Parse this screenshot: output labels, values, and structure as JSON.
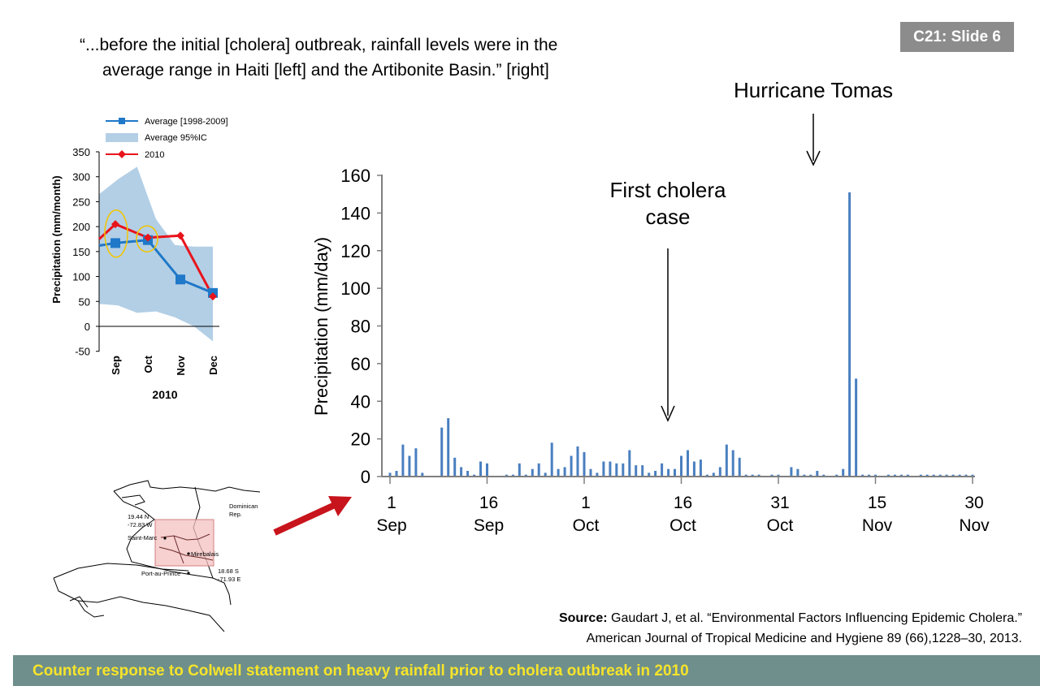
{
  "slide_tag": "C21: Slide 6",
  "quote": {
    "line1": "“...before the initial [cholera] outbreak, rainfall levels were in the",
    "line2": "average range in Haiti [left] and the Artibonite Basin.” [right]"
  },
  "source": {
    "label": "Source:",
    "line1": " Gaudart J, et al. “Environmental Factors Influencing Epidemic Cholera.”",
    "line2": "American Journal of Tropical Medicine and Hygiene 89 (66),1228–30, 2013."
  },
  "footer": "Counter response to Colwell statement on heavy rainfall prior to cholera outbreak in 2010",
  "colors": {
    "average": "#1f78c8",
    "ci_band": "#b3cfe6",
    "y2010": "#e8141c",
    "highlight": "#f2c500",
    "bars": "#4a7fc0",
    "arrow": "#c8141c",
    "map_box": "#f4c0c0",
    "footer_bg": "#6e8f8c",
    "footer_text": "#f6e42a"
  },
  "map": {
    "labels": [
      "Dominican",
      "Rep.",
      "19.44 N",
      "-72.83 W",
      "Saint-Marc",
      "Mirebalais",
      "Port-au-Prince",
      "18.68 S",
      "-71.93 E"
    ]
  },
  "chart_data": [
    {
      "type": "line",
      "title": "",
      "xlabel": "2010",
      "ylabel": "Precipitation (mm/month)",
      "categories": [
        "Sep",
        "Oct",
        "Nov",
        "Dec"
      ],
      "ylim": [
        -50,
        350
      ],
      "yticks": [
        -50,
        0,
        50,
        100,
        150,
        200,
        250,
        300,
        350
      ],
      "legend": [
        "Average [1998-2009]",
        "Average 95%IC",
        "2010"
      ],
      "series": [
        {
          "name": "Average [1998-2009]",
          "start": 162,
          "values": [
            167,
            173,
            94,
            67
          ],
          "end": 65
        },
        {
          "name": "2010",
          "start": 175,
          "values": [
            205,
            178,
            182,
            60
          ],
          "end": 55
        }
      ],
      "band": {
        "name": "Average 95%IC",
        "upper_x": [
          0,
          1,
          2,
          3,
          4,
          5,
          6
        ],
        "upper": [
          265,
          295,
          320,
          215,
          163,
          160,
          160
        ],
        "lower_x": [
          6,
          5,
          4,
          3,
          2,
          1,
          0
        ],
        "lower": [
          -30,
          0,
          18,
          30,
          27,
          42,
          45
        ]
      },
      "highlighted": [
        "Sep",
        "Oct"
      ]
    },
    {
      "type": "bar",
      "title": "",
      "xlabel": "",
      "ylabel": "Precipitation (mm/day)",
      "ylim": [
        0,
        160
      ],
      "yticks": [
        0,
        20,
        40,
        60,
        80,
        100,
        120,
        140,
        160
      ],
      "xtick_days": [
        1,
        16,
        31,
        46,
        61,
        76,
        91
      ],
      "xtick_labels": [
        [
          "1",
          "Sep"
        ],
        [
          "16",
          "Sep"
        ],
        [
          "1",
          "Oct"
        ],
        [
          "16",
          "Oct"
        ],
        [
          "31",
          "Oct"
        ],
        [
          "15",
          "Nov"
        ],
        [
          "30",
          "Nov"
        ]
      ],
      "days": [
        1,
        2,
        3,
        4,
        5,
        6,
        7,
        8,
        9,
        10,
        11,
        12,
        13,
        14,
        15,
        16,
        17,
        18,
        19,
        20,
        21,
        22,
        23,
        24,
        25,
        26,
        27,
        28,
        29,
        30,
        31,
        32,
        33,
        34,
        35,
        36,
        37,
        38,
        39,
        40,
        41,
        42,
        43,
        44,
        45,
        46,
        47,
        48,
        49,
        50,
        51,
        52,
        53,
        54,
        55,
        56,
        57,
        58,
        59,
        60,
        61,
        62,
        63,
        64,
        65,
        66,
        67,
        68,
        69,
        70,
        71,
        72,
        73,
        74,
        75,
        76,
        77,
        78,
        79,
        80,
        81,
        82,
        83,
        84,
        85,
        86,
        87,
        88,
        89,
        90,
        91
      ],
      "values": [
        2,
        3,
        17,
        11,
        15,
        2,
        0,
        0,
        26,
        31,
        10,
        5,
        3,
        1,
        8,
        7,
        0,
        0,
        1,
        1,
        7,
        1,
        4,
        7,
        2,
        18,
        4,
        5,
        11,
        16,
        13,
        4,
        2,
        8,
        8,
        7,
        7,
        14,
        6,
        6,
        2,
        3,
        7,
        4,
        4,
        11,
        14,
        8,
        9,
        1,
        2,
        5,
        17,
        14,
        10,
        1,
        1,
        1,
        0,
        1,
        1,
        0,
        5,
        4,
        1,
        1,
        3,
        1,
        0,
        1,
        4,
        151,
        52,
        1,
        1,
        1,
        0,
        1,
        1,
        1,
        1,
        0,
        1,
        1,
        1,
        1,
        1,
        1,
        1,
        1,
        1
      ],
      "annotations": [
        {
          "text1": "First cholera",
          "text2": "case",
          "day": 46
        },
        {
          "text1": "Hurricane Tomas",
          "day": 66
        }
      ]
    }
  ]
}
